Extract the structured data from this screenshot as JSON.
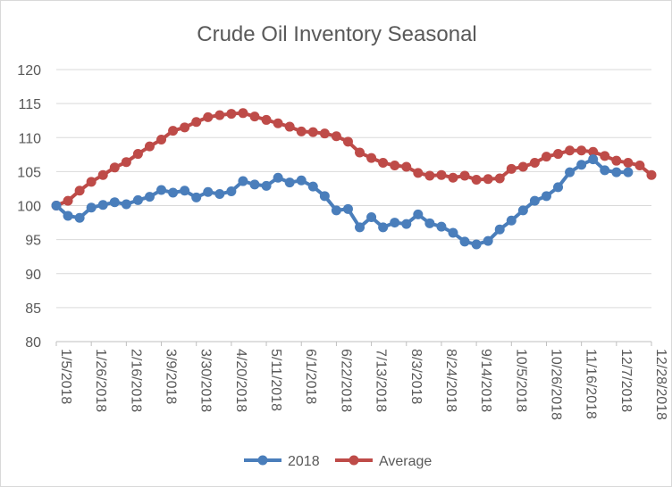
{
  "chart_data": {
    "type": "line",
    "title": "Crude Oil Inventory Seasonal",
    "xlabel": "",
    "ylabel": "",
    "ylim": [
      80,
      120
    ],
    "yticks": [
      80,
      85,
      90,
      95,
      100,
      105,
      110,
      115,
      120
    ],
    "x_tick_labels": [
      "1/5/2018",
      "1/26/2018",
      "2/16/2018",
      "3/9/2018",
      "3/30/2018",
      "4/20/2018",
      "5/11/2018",
      "6/1/2018",
      "6/22/2018",
      "7/13/2018",
      "8/3/2018",
      "8/24/2018",
      "9/14/2018",
      "10/5/2018",
      "10/26/2018",
      "11/16/2018",
      "12/7/2018",
      "12/28/2018"
    ],
    "x": [
      "1/5/2018",
      "1/12/2018",
      "1/19/2018",
      "1/26/2018",
      "2/2/2018",
      "2/9/2018",
      "2/16/2018",
      "2/23/2018",
      "3/2/2018",
      "3/9/2018",
      "3/16/2018",
      "3/23/2018",
      "3/30/2018",
      "4/6/2018",
      "4/13/2018",
      "4/20/2018",
      "4/27/2018",
      "5/4/2018",
      "5/11/2018",
      "5/18/2018",
      "5/25/2018",
      "6/1/2018",
      "6/8/2018",
      "6/15/2018",
      "6/22/2018",
      "6/29/2018",
      "7/6/2018",
      "7/13/2018",
      "7/20/2018",
      "7/27/2018",
      "8/3/2018",
      "8/10/2018",
      "8/17/2018",
      "8/24/2018",
      "8/31/2018",
      "9/7/2018",
      "9/14/2018",
      "9/21/2018",
      "9/28/2018",
      "10/5/2018",
      "10/12/2018",
      "10/19/2018",
      "10/26/2018",
      "11/2/2018",
      "11/9/2018",
      "11/16/2018",
      "11/23/2018",
      "11/30/2018",
      "12/7/2018",
      "12/14/2018",
      "12/21/2018",
      "12/28/2018"
    ],
    "series": [
      {
        "name": "2018",
        "color": "#4a7ebb",
        "values": [
          100.0,
          98.5,
          98.2,
          99.7,
          100.1,
          100.5,
          100.2,
          100.8,
          101.3,
          102.3,
          101.9,
          102.2,
          101.2,
          102.0,
          101.7,
          102.1,
          103.6,
          103.1,
          102.9,
          104.1,
          103.4,
          103.7,
          102.8,
          101.4,
          99.3,
          99.5,
          96.8,
          98.3,
          96.8,
          97.5,
          97.3,
          98.7,
          97.4,
          96.9,
          96.0,
          94.7,
          94.3,
          94.8,
          96.5,
          97.8,
          99.3,
          100.7,
          101.4,
          102.7,
          104.9,
          106.0,
          106.8,
          105.2,
          104.9,
          104.9,
          null,
          null
        ]
      },
      {
        "name": "Average",
        "color": "#be4b48",
        "values": [
          100.0,
          100.7,
          102.2,
          103.5,
          104.5,
          105.6,
          106.4,
          107.6,
          108.7,
          109.7,
          111.0,
          111.5,
          112.3,
          113.0,
          113.3,
          113.5,
          113.6,
          113.1,
          112.6,
          112.1,
          111.6,
          110.9,
          110.8,
          110.6,
          110.2,
          109.4,
          107.8,
          107.0,
          106.3,
          105.9,
          105.7,
          104.8,
          104.4,
          104.5,
          104.1,
          104.4,
          103.8,
          103.9,
          104.0,
          105.4,
          105.7,
          106.3,
          107.2,
          107.6,
          108.1,
          108.1,
          107.9,
          107.3,
          106.6,
          106.3,
          105.9,
          104.5
        ]
      }
    ],
    "grid": true,
    "legend": "bottom"
  }
}
